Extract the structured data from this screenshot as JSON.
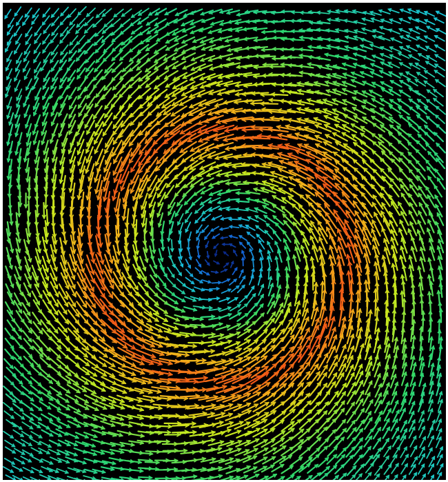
{
  "image": {
    "kind": "vector-field",
    "pattern": "vortex",
    "rotation": "counter-clockwise",
    "background_color": "#000000",
    "frame_color": "#ffffff",
    "colormap": [
      "#0a1f7a",
      "#1565d8",
      "#19c4d8",
      "#2fd86a",
      "#c6e81e",
      "#f2b21a",
      "#f24a16"
    ]
  }
}
